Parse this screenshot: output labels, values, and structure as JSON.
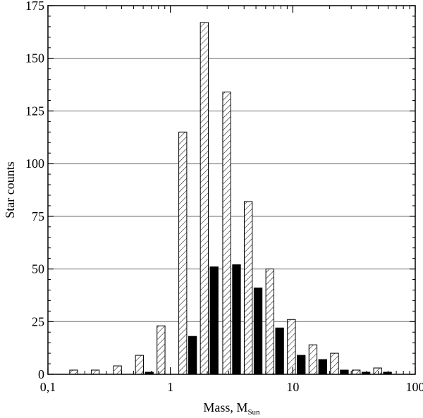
{
  "chart_data": {
    "type": "bar",
    "xlabel": "Mass, M",
    "xlabel_subscript": "Sun",
    "ylabel": "Star counts",
    "xscale": "log",
    "xlim": [
      0.1,
      100
    ],
    "ylim": [
      0,
      175
    ],
    "x_ticks": [
      {
        "value": 0.1,
        "label": "0,1"
      },
      {
        "value": 1,
        "label": "1"
      },
      {
        "value": 10,
        "label": "10"
      },
      {
        "value": 100,
        "label": "100"
      }
    ],
    "y_ticks": [
      {
        "value": 0,
        "label": "0"
      },
      {
        "value": 25,
        "label": "25"
      },
      {
        "value": 50,
        "label": "50"
      },
      {
        "value": 75,
        "label": "75"
      },
      {
        "value": 100,
        "label": "100"
      },
      {
        "value": 125,
        "label": "125"
      },
      {
        "value": 150,
        "label": "150"
      },
      {
        "value": 175,
        "label": "175"
      }
    ],
    "grid": "horizontal",
    "bin_centers": [
      0.12,
      0.18,
      0.27,
      0.41,
      0.62,
      0.93,
      1.4,
      2.1,
      3.2,
      4.8,
      7.2,
      10.8,
      16.2,
      24.3,
      36.5,
      54.7
    ],
    "series": [
      {
        "style": "hatched",
        "values": [
          0,
          2,
          2,
          4,
          9,
          23,
          115,
          167,
          134,
          82,
          50,
          26,
          14,
          10,
          2,
          3
        ]
      },
      {
        "style": "solid",
        "values": [
          0,
          0,
          0,
          0,
          1,
          0,
          18,
          51,
          52,
          41,
          22,
          9,
          7,
          2,
          1,
          1
        ]
      }
    ],
    "colors": {
      "solid": "#000000",
      "hatched": "#000000",
      "grid": "#808080"
    }
  }
}
